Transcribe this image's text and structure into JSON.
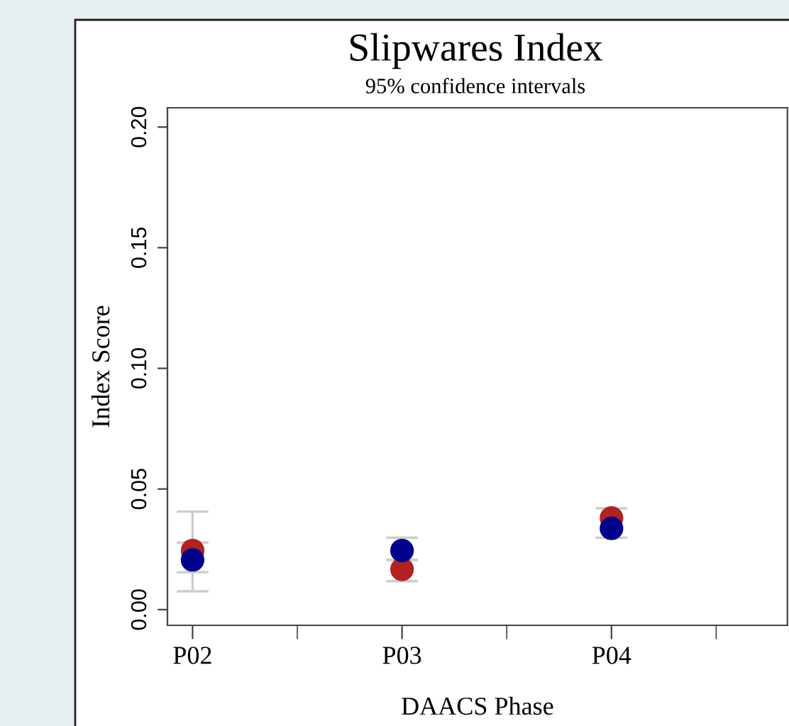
{
  "chart_data": {
    "type": "scatter",
    "title": "Slipwares Index",
    "subtitle": "95% confidence intervals",
    "xlabel": "DAACS Phase",
    "ylabel": "Index Score",
    "categories": [
      "P02",
      "P03",
      "P04"
    ],
    "series": [
      {
        "color": "#b22222",
        "values": [
          0.0245,
          0.0167,
          0.038
        ],
        "errors": [
          [
            0.0155,
            0.0278
          ],
          [
            0.0118,
            0.0206
          ],
          [
            0.0298,
            0.042
          ]
        ]
      },
      {
        "color": "#00008b",
        "values": [
          0.0206,
          0.0245,
          0.0337
        ],
        "errors": [
          [
            0.0076,
            0.0406
          ],
          [
            0.0206,
            0.0298
          ],
          null
        ]
      }
    ],
    "ylim": [
      -0.0065,
      0.208
    ],
    "yticks": [
      {
        "value": 0,
        "label": "0.00"
      },
      {
        "value": 0.05,
        "label": "0.05"
      },
      {
        "value": 0.1,
        "label": "0.10"
      },
      {
        "value": 0.15,
        "label": "0.15"
      },
      {
        "value": 0.2,
        "label": "0.20"
      }
    ],
    "marker": "circle",
    "grid": false
  }
}
